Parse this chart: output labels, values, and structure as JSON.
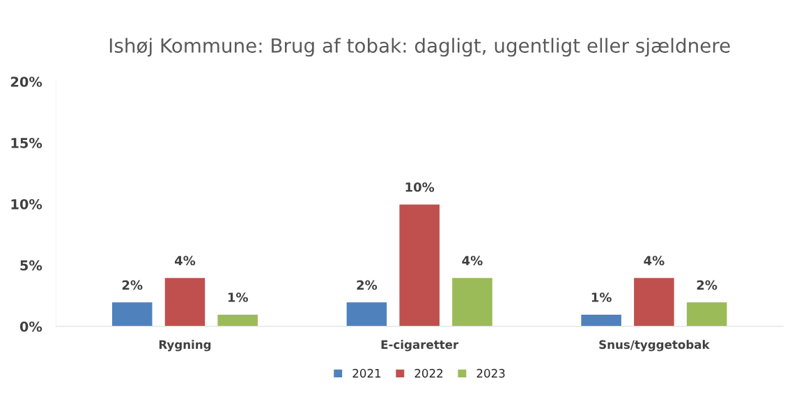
{
  "chart_data": {
    "type": "bar",
    "title": "Ishøj Kommune: Brug af tobak: dagligt, ugentligt eller sjældnere",
    "categories": [
      "Rygning",
      "E-cigaretter",
      "Snus/tyggetobak"
    ],
    "series": [
      {
        "name": "2021",
        "color": "#4f81bd",
        "values": [
          2,
          2,
          1
        ],
        "value_labels": [
          "2%",
          "2%",
          "1%"
        ]
      },
      {
        "name": "2022",
        "color": "#c0504d",
        "values": [
          4,
          10,
          4
        ],
        "value_labels": [
          "4%",
          "10%",
          "4%"
        ]
      },
      {
        "name": "2023",
        "color": "#9bbb59",
        "values": [
          1,
          4,
          2
        ],
        "value_labels": [
          "1%",
          "4%",
          "2%"
        ]
      }
    ],
    "ylim": [
      0,
      20
    ],
    "yticks": [
      {
        "value": 0,
        "label": "0%"
      },
      {
        "value": 5,
        "label": "5%"
      },
      {
        "value": 10,
        "label": "10%"
      },
      {
        "value": 15,
        "label": "15%"
      },
      {
        "value": 20,
        "label": "20%"
      }
    ],
    "grid": false,
    "legend": "bottom"
  }
}
